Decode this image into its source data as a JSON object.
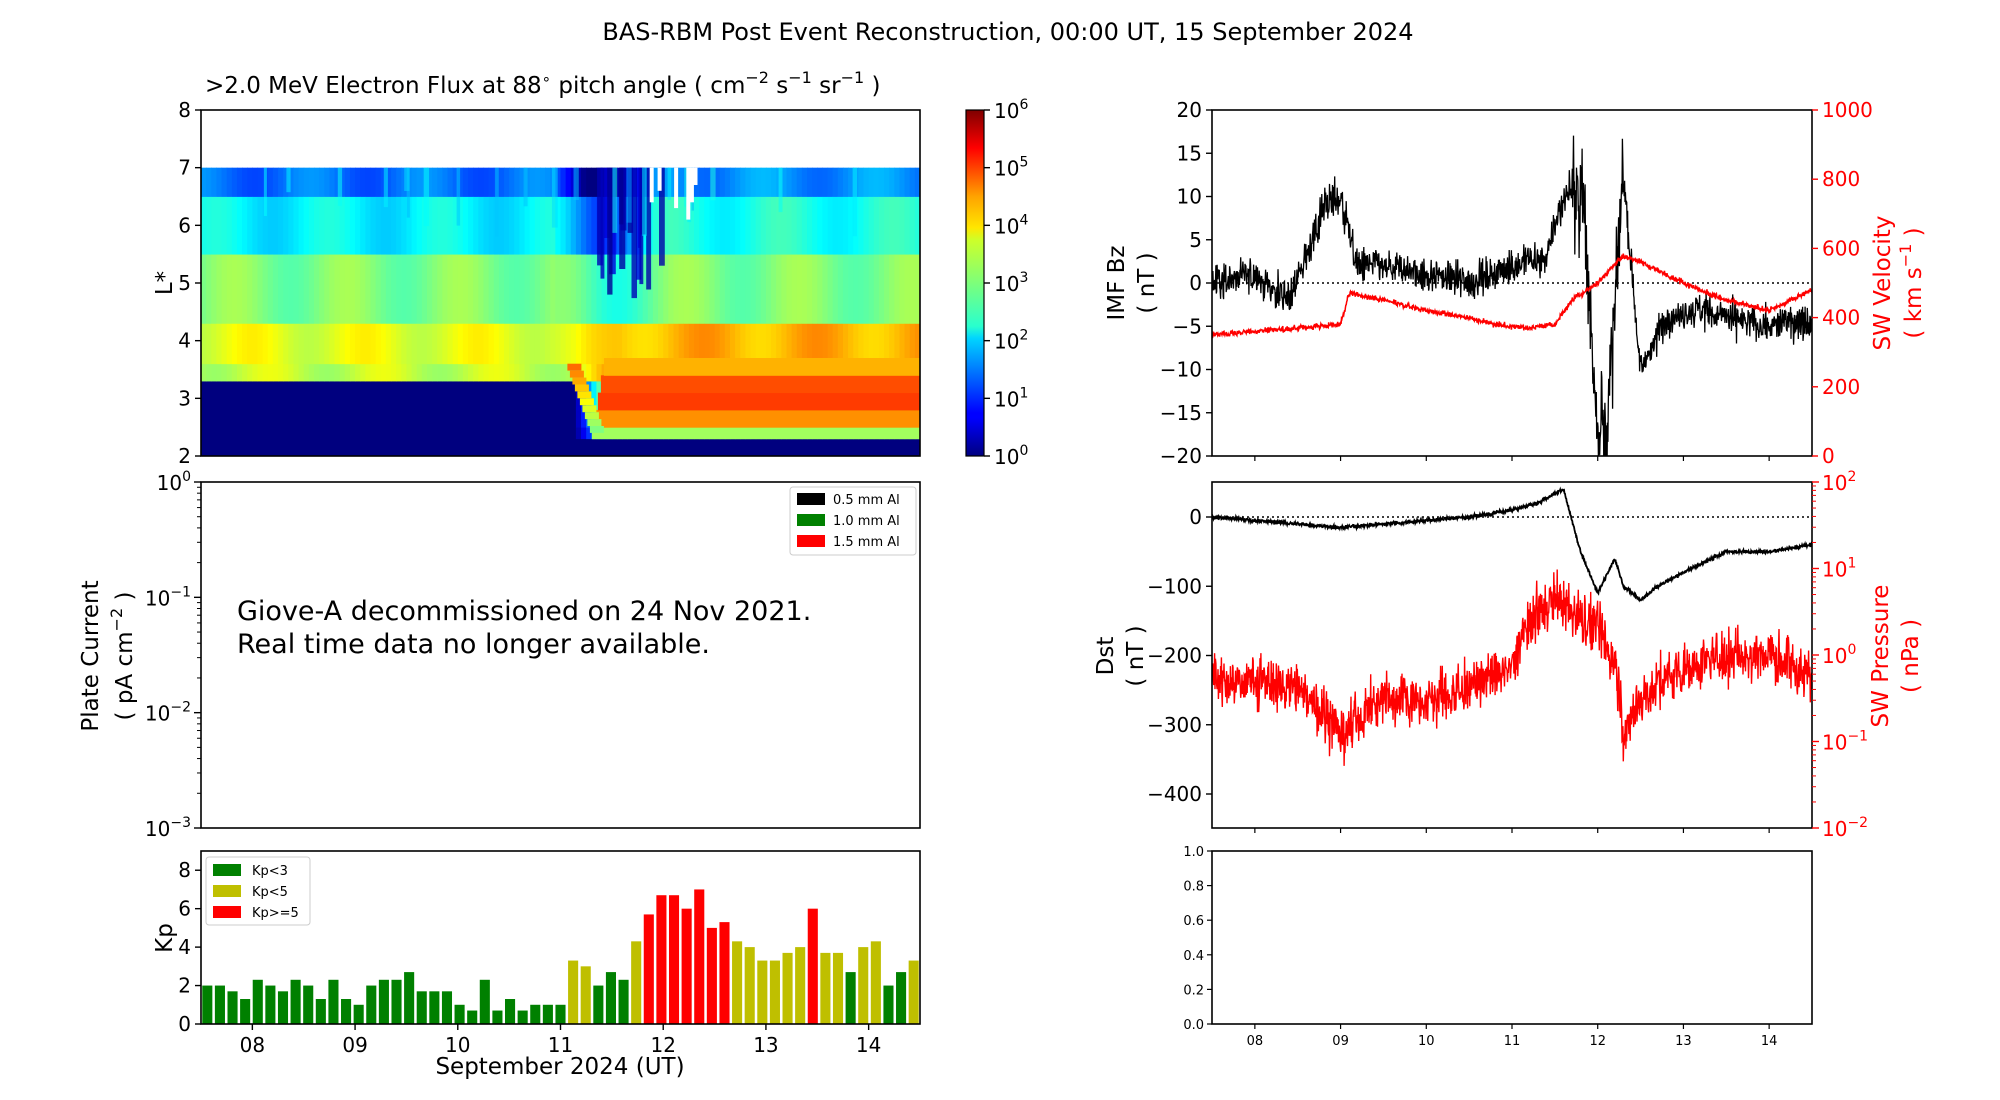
{
  "figure": {
    "title": "BAS-RBM Post Event Reconstruction, 00:00 UT, 15 September 2024"
  },
  "colors": {
    "kp_low": "#008000",
    "kp_mid": "#bfbf00",
    "kp_high": "#ff0000",
    "bz_line": "#000000",
    "sw_velocity_line": "#ff0000",
    "dst_line": "#000000",
    "sw_pressure_line": "#ff0000",
    "al_05": "#000000",
    "al_10": "#008000",
    "al_15": "#ff0000"
  },
  "panels": {
    "flux": {
      "title_prefix": ">2.0 MeV Electron Flux at 88",
      "title_unit_open": "pitch angle ( cm",
      "title_exp1": "−2",
      "title_s": " s",
      "title_exp2": "−1",
      "title_sr": " sr",
      "title_exp3": "−1",
      "title_close": " )",
      "ylabel": "L*",
      "yticks": [
        "2",
        "3",
        "4",
        "5",
        "6",
        "7",
        "8"
      ],
      "colorbar_ticks": [
        {
          "base": "10",
          "exp": "0"
        },
        {
          "base": "10",
          "exp": "1"
        },
        {
          "base": "10",
          "exp": "2"
        },
        {
          "base": "10",
          "exp": "3"
        },
        {
          "base": "10",
          "exp": "4"
        },
        {
          "base": "10",
          "exp": "5"
        },
        {
          "base": "10",
          "exp": "6"
        }
      ]
    },
    "plate": {
      "ylabel_line1": "Plate Current",
      "ylabel_line2_open": "( pA cm",
      "ylabel_exp": "−2",
      "ylabel_line2_close": " )",
      "yticks": [
        {
          "base": "10",
          "exp": "−3"
        },
        {
          "base": "10",
          "exp": "−2"
        },
        {
          "base": "10",
          "exp": "−1"
        },
        {
          "base": "10",
          "exp": "0"
        }
      ],
      "message_line1": "Giove-A decommissioned on 24 Nov 2021.",
      "message_line2": "Real time data no longer available.",
      "legend": [
        "0.5 mm Al",
        "1.0 mm Al",
        "1.5 mm Al"
      ]
    },
    "kp": {
      "ylabel": "Kp",
      "yticks": [
        "0",
        "2",
        "4",
        "6",
        "8"
      ],
      "xticks": [
        "08",
        "09",
        "10",
        "11",
        "12",
        "13",
        "14"
      ],
      "xlabel": "September 2024 (UT)",
      "legend": [
        "Kp<3",
        "Kp<5",
        "Kp>=5"
      ]
    },
    "bz": {
      "ylabel_line1": "IMF Bz",
      "ylabel_line2": "( nT )",
      "yticks": [
        "−20",
        "−15",
        "−10",
        "−5",
        "0",
        "5",
        "10",
        "15",
        "20"
      ],
      "right_ylabel_line1": "SW Velocity",
      "right_ylabel_line2_open": "( km s",
      "right_ylabel_exp": "−1",
      "right_ylabel_line2_close": " )",
      "right_yticks": [
        "0",
        "200",
        "400",
        "600",
        "800",
        "1000"
      ]
    },
    "dst": {
      "ylabel_line1": "Dst",
      "ylabel_line2": "( nT )",
      "yticks": [
        "−400",
        "−300",
        "−200",
        "−100",
        "0"
      ],
      "right_ylabel_line1": "SW Pressure",
      "right_ylabel_line2": "( nPa )",
      "right_yticks": [
        {
          "base": "10",
          "exp": "−2"
        },
        {
          "base": "10",
          "exp": "−1"
        },
        {
          "base": "10",
          "exp": "0"
        },
        {
          "base": "10",
          "exp": "1"
        },
        {
          "base": "10",
          "exp": "2"
        }
      ]
    },
    "empty": {
      "yticks": [
        "0.0",
        "0.2",
        "0.4",
        "0.6",
        "0.8",
        "1.0"
      ],
      "xticks": [
        "08",
        "09",
        "10",
        "11",
        "12",
        "13",
        "14"
      ]
    }
  },
  "chart_data": [
    {
      "type": "heatmap",
      "title": ">2.0 MeV Electron Flux at 88° pitch angle (cm−2 s−1 sr−1)",
      "ylabel": "L*",
      "ylim": [
        2,
        8
      ],
      "xlim_days": [
        "2024-09-07T12:00",
        "2024-09-14T12:00"
      ],
      "colorbar": {
        "scale": "log",
        "range": [
          1,
          1000000
        ],
        "colormap": "jet"
      },
      "bands_log10_flux": [
        {
          "L_range": [
            2.0,
            3.3
          ],
          "before_storm": 0.0,
          "after_storm": 0.0
        },
        {
          "L_range": [
            2.3,
            2.5
          ],
          "before_storm": 0.0,
          "after_storm": 3.2
        },
        {
          "L_range": [
            2.5,
            2.8
          ],
          "before_storm": 0.0,
          "after_storm": 4.4
        },
        {
          "L_range": [
            2.8,
            3.3
          ],
          "before_storm": 0.0,
          "after_storm": 4.9
        },
        {
          "L_range": [
            3.3,
            3.6
          ],
          "before_storm": 3.4,
          "after_storm": 4.3
        },
        {
          "L_range": [
            3.6,
            4.3
          ],
          "before_storm": 3.6,
          "after_storm": 4.2
        },
        {
          "L_range": [
            4.3,
            5.5
          ],
          "before_storm": 3.0,
          "after_storm": 3.0
        },
        {
          "L_range": [
            5.5,
            6.5
          ],
          "before_storm": 2.2,
          "after_storm": 2.4
        },
        {
          "L_range": [
            6.5,
            7.0
          ],
          "before_storm": 1.4,
          "after_storm": 1.6
        }
      ],
      "storm_onset_day": "2024-09-11T05:00",
      "dropout_period": [
        "2024-09-11T03:00",
        "2024-09-12T06:00"
      ]
    },
    {
      "type": "bar",
      "title": "",
      "ylabel": "Kp",
      "ylim": [
        0,
        9
      ],
      "xlabel": "September 2024 (UT)",
      "interval_hours": 3,
      "start": "2024-09-07T12:00",
      "values": [
        2.0,
        2.0,
        1.7,
        1.3,
        2.3,
        2.0,
        1.7,
        2.3,
        2.0,
        1.3,
        2.3,
        1.3,
        1.0,
        2.0,
        2.3,
        2.3,
        2.7,
        1.7,
        1.7,
        1.7,
        1.0,
        0.7,
        2.3,
        0.7,
        1.3,
        0.7,
        1.0,
        1.0,
        1.0,
        3.3,
        3.0,
        2.0,
        2.7,
        2.3,
        4.3,
        5.7,
        6.7,
        6.7,
        6.0,
        7.0,
        5.0,
        5.3,
        4.3,
        4.0,
        3.3,
        3.3,
        3.7,
        4.0,
        6.0,
        3.7,
        3.7,
        2.7,
        4.0,
        4.3,
        2.0,
        2.7,
        3.3
      ],
      "legend": [
        "Kp<3",
        "Kp<5",
        "Kp>=5"
      ]
    },
    {
      "type": "line",
      "title": "",
      "series": [
        {
          "name": "IMF Bz",
          "unit": "nT",
          "ylim": [
            -20,
            20
          ],
          "color": "#000000",
          "day_offsets": [
            0.0,
            0.5,
            0.9,
            1.1,
            1.3,
            1.5,
            1.7,
            2.0,
            2.5,
            3.0,
            3.5,
            3.9,
            4.1,
            4.3,
            4.5,
            4.6,
            4.8,
            5.0,
            5.3,
            5.6,
            6.0,
            6.5,
            7.0
          ],
          "values": [
            0,
            1,
            -2,
            3,
            9,
            10,
            2,
            2,
            1,
            0,
            2,
            3,
            10,
            12,
            -15,
            -18,
            12,
            -10,
            -4,
            -3,
            -4,
            -5,
            -4
          ]
        },
        {
          "name": "SW Velocity",
          "unit": "km s−1",
          "ylim": [
            0,
            1000
          ],
          "color": "#ff0000",
          "day_offsets": [
            0.0,
            0.5,
            1.0,
            1.5,
            1.6,
            2.0,
            2.5,
            3.0,
            3.3,
            3.7,
            4.0,
            4.2,
            4.5,
            4.8,
            5.0,
            5.5,
            6.0,
            6.5,
            7.0
          ],
          "values": [
            350,
            360,
            370,
            380,
            470,
            450,
            420,
            400,
            380,
            370,
            380,
            450,
            500,
            580,
            560,
            500,
            450,
            420,
            480
          ]
        }
      ]
    },
    {
      "type": "line",
      "title": "",
      "series": [
        {
          "name": "Dst",
          "unit": "nT",
          "ylim": [
            -450,
            50
          ],
          "color": "#000000",
          "day_offsets": [
            0.0,
            0.5,
            1.0,
            1.5,
            2.0,
            2.5,
            3.0,
            3.5,
            3.8,
            4.1,
            4.3,
            4.4,
            4.5,
            4.7,
            4.8,
            5.0,
            5.2,
            5.5,
            6.0,
            6.5,
            7.0
          ],
          "values": [
            0,
            -5,
            -10,
            -15,
            -10,
            -5,
            0,
            10,
            20,
            40,
            -50,
            -80,
            -110,
            -60,
            -100,
            -120,
            -100,
            -80,
            -50,
            -50,
            -40
          ]
        },
        {
          "name": "SW Pressure",
          "unit": "nPa",
          "scale": "log",
          "ylim": [
            0.01,
            100
          ],
          "color": "#ff0000",
          "day_offsets": [
            0.0,
            0.5,
            1.0,
            1.5,
            2.0,
            2.5,
            3.0,
            3.5,
            3.8,
            4.0,
            4.2,
            4.5,
            4.8,
            5.0,
            5.5,
            6.0,
            6.5,
            7.0
          ],
          "values": [
            0.5,
            0.5,
            0.4,
            0.1,
            0.3,
            0.3,
            0.4,
            0.7,
            3,
            5,
            3,
            2,
            0.1,
            0.3,
            0.7,
            1,
            1,
            0.5
          ]
        }
      ]
    }
  ]
}
